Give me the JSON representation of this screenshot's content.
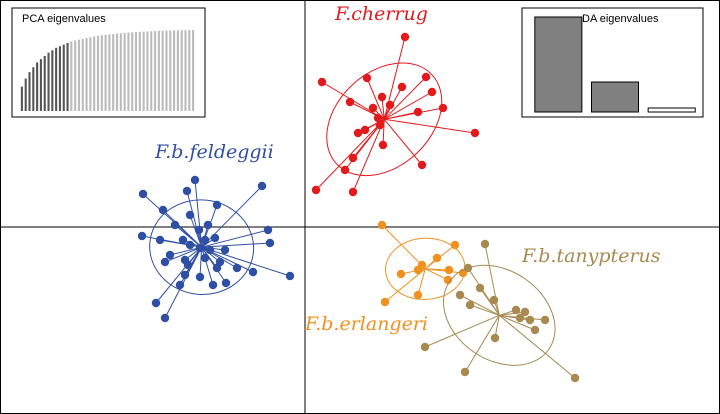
{
  "chart_data": [
    {
      "type": "scatter",
      "xlim": [
        -30.5,
        41.5
      ],
      "ylim": [
        -18.7,
        22.7
      ],
      "series": [
        {
          "name": "F.cherrug",
          "color": "#e31a1c",
          "x": [
            10.0,
            1.7,
            6.2,
            7.7,
            9.7,
            12.1,
            12.7,
            4.5,
            6.8,
            8.5,
            11.3,
            13.8,
            7.3,
            7.5,
            6.0,
            5.3,
            17.0,
            4.8,
            7.8,
            4.0,
            1.1,
            4.8,
            11.7
          ],
          "y": [
            19.0,
            14.5,
            14.9,
            13.0,
            14.0,
            15.0,
            13.5,
            12.5,
            11.9,
            12.2,
            11.5,
            11.9,
            10.9,
            10.2,
            9.7,
            9.4,
            9.4,
            6.9,
            8.2,
            5.7,
            3.7,
            3.5,
            6.2
          ]
        },
        {
          "name": "F.b.feldeggii",
          "color": "#2e4fa3",
          "x": [
            -11.0,
            -4.3,
            -11.8,
            -16.2,
            -8.8,
            -14.2,
            -11.5,
            -3.7,
            -9.7,
            -13.0,
            -10.6,
            -16.3,
            -14.5,
            -12.2,
            -10.0,
            -9.0,
            -11.5,
            -10.5,
            -9.5,
            -8.0,
            -3.5,
            -13.5,
            -12.0,
            -10.0,
            -8.5,
            -6.8,
            -11.7,
            -8.8,
            -14.0,
            -12.0,
            -5.2,
            -1.5,
            -10.5,
            -9.2,
            -7.9,
            -12.5,
            -14.9,
            -14.0
          ],
          "y": [
            4.7,
            4.1,
            3.6,
            3.3,
            2.2,
            1.7,
            1.2,
            -0.3,
            0.2,
            0.2,
            -0.3,
            -0.9,
            -1.3,
            -1.3,
            -1.3,
            -1.1,
            -1.8,
            -2.1,
            -2.3,
            -2.3,
            -1.6,
            -2.8,
            -3.3,
            -3.1,
            -3.5,
            -4.1,
            -3.8,
            -4.1,
            -3.5,
            -4.8,
            -4.5,
            -4.9,
            -5.0,
            -5.8,
            -5.6,
            -5.8,
            -7.6,
            -9.1
          ]
        },
        {
          "name": "F.b.erlangeri",
          "color": "#f0901e",
          "x": [
            7.7,
            15.0,
            13.2,
            11.7,
            11.3,
            14.4,
            15.8,
            14.3,
            9.6,
            11.3,
            8.0
          ],
          "y": [
            0.2,
            -1.8,
            -3.1,
            -3.8,
            -4.3,
            -4.3,
            -4.6,
            -5.3,
            -4.7,
            -6.8,
            -7.5
          ]
        },
        {
          "name": "F.b.tanypterus",
          "color": "#a88a50",
          "x": [
            18.0,
            16.3,
            17.5,
            15.5,
            18.9,
            16.5,
            21.1,
            22.0,
            21.5,
            22.5,
            24.0,
            23.0,
            12.0,
            19.0,
            27.0,
            16.0
          ],
          "y": [
            -1.7,
            -4.1,
            -6.1,
            -6.8,
            -7.3,
            -7.8,
            -8.3,
            -8.5,
            -9.1,
            -9.3,
            -9.3,
            -10.3,
            -12.0,
            -11.1,
            -15.1,
            -14.5
          ]
        }
      ]
    },
    {
      "type": "bar",
      "title": "PCA eigenvalues",
      "values": [
        0.3,
        0.4,
        0.48,
        0.54,
        0.6,
        0.64,
        0.68,
        0.72,
        0.75,
        0.78,
        0.8,
        0.82,
        0.84,
        0.86,
        0.87,
        0.88,
        0.89,
        0.9,
        0.91,
        0.92,
        0.93,
        0.935,
        0.94,
        0.945,
        0.95,
        0.955,
        0.96,
        0.965,
        0.97,
        0.972,
        0.975,
        0.978,
        0.98,
        0.982,
        0.985,
        0.987,
        0.99,
        0.991,
        0.992,
        0.994,
        0.995,
        0.996,
        0.997,
        0.998,
        0.999,
        1.0
      ],
      "colors": [
        "#555555",
        "#555555",
        "#555555",
        "#555555",
        "#555555",
        "#555555",
        "#555555",
        "#555555",
        "#555555",
        "#555555",
        "#555555",
        "#555555",
        "#555555",
        "#bbbbbb",
        "#bbbbbb",
        "#bbbbbb",
        "#bbbbbb",
        "#bbbbbb",
        "#bbbbbb",
        "#bbbbbb",
        "#bbbbbb",
        "#bbbbbb",
        "#bbbbbb",
        "#bbbbbb",
        "#bbbbbb",
        "#bbbbbb",
        "#bbbbbb",
        "#bbbbbb",
        "#bbbbbb",
        "#bbbbbb",
        "#bbbbbb",
        "#bbbbbb",
        "#bbbbbb",
        "#bbbbbb",
        "#bbbbbb",
        "#bbbbbb",
        "#bbbbbb",
        "#bbbbbb",
        "#bbbbbb",
        "#bbbbbb",
        "#bbbbbb",
        "#bbbbbb",
        "#bbbbbb",
        "#bbbbbb",
        "#bbbbbb",
        "#bbbbbb"
      ]
    },
    {
      "type": "bar",
      "title": "DA eigenvalues",
      "values": [
        95,
        30,
        4
      ],
      "colors": [
        "#808080",
        "#808080",
        "#ffffff"
      ]
    }
  ]
}
